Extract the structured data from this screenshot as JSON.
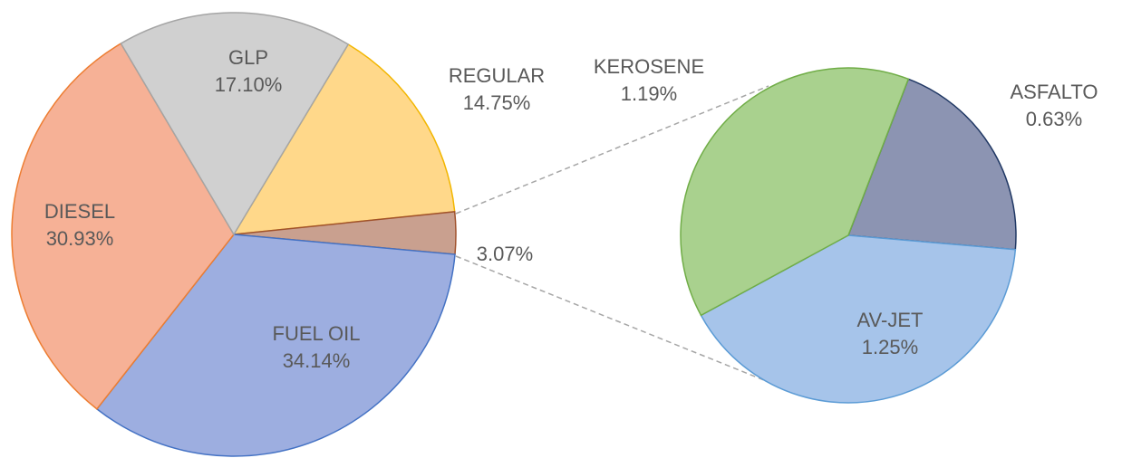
{
  "chart_data": [
    {
      "type": "pie",
      "categories": [
        "REGULAR",
        null,
        "FUEL OIL",
        "DIESEL",
        "GLP"
      ],
      "values": [
        14.75,
        3.07,
        34.14,
        30.93,
        17.1
      ],
      "value_labels": [
        "14.75%",
        "3.07%",
        "34.14%",
        "30.93%",
        "17.10%"
      ],
      "colors": [
        "#ffd88a",
        "#c9a08f",
        "#9daee0",
        "#f6b196",
        "#d0d0d0"
      ],
      "edge_colors": [
        "#f2b600",
        "#a0522d",
        "#4472c4",
        "#ed7d31",
        "#a5a5a5"
      ]
    },
    {
      "type": "pie",
      "categories": [
        "ASFALTO",
        "AV-JET",
        "KEROSENE"
      ],
      "values": [
        0.63,
        1.25,
        1.19
      ],
      "value_labels": [
        "0.63%",
        "1.25%",
        "1.19%"
      ],
      "colors": [
        "#8c94b2",
        "#a6c4ea",
        "#a9d18e"
      ],
      "edge_colors": [
        "#203864",
        "#5b9bd5",
        "#70ad47"
      ]
    }
  ]
}
